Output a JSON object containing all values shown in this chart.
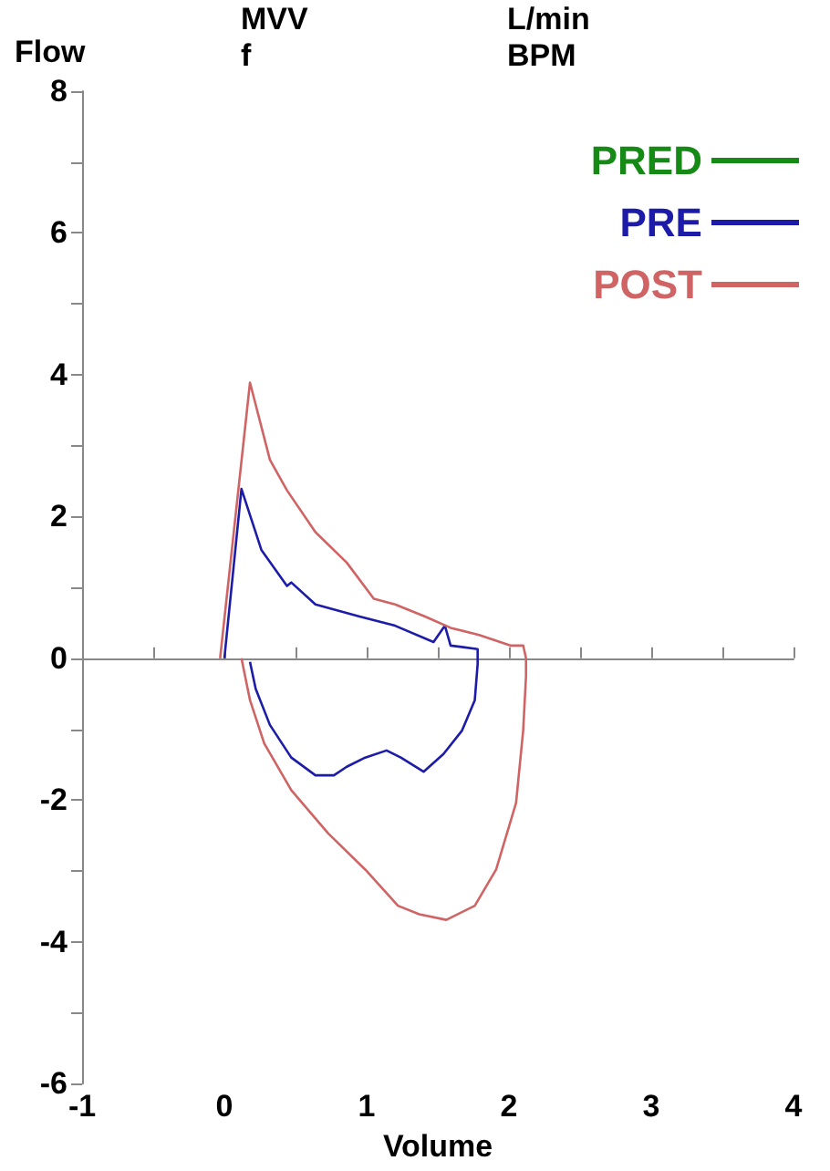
{
  "chart_data": {
    "type": "line",
    "xlabel": "Volume",
    "ylabel": "Flow",
    "annotations": [
      "MVV",
      "f",
      "L/min",
      "BPM"
    ],
    "xlim": [
      -1,
      4
    ],
    "xticks": [
      -1,
      {
        "value": -0.5,
        "label": null
      },
      0,
      {
        "value": 0.5,
        "label": null
      },
      1,
      {
        "value": 1.5,
        "label": null
      },
      2,
      {
        "value": 2.5,
        "label": null
      },
      3,
      {
        "value": 3.5,
        "label": null
      },
      4
    ],
    "ylim": [
      -6,
      8
    ],
    "yticks": [
      -6,
      {
        "value": -5,
        "label": null
      },
      -4,
      {
        "value": -3,
        "label": null
      },
      -2,
      {
        "value": -1,
        "label": null
      },
      0,
      {
        "value": 1,
        "label": null
      },
      2,
      {
        "value": 3,
        "label": null
      },
      4,
      {
        "value": 5,
        "label": null
      },
      6,
      {
        "value": 7,
        "label": null
      },
      8
    ],
    "legend": "top right",
    "marker": "none",
    "series": [
      {
        "name": "PRED",
        "color": "#158a15"
      },
      {
        "name": "PRE",
        "color": "#1c1ca8",
        "x": [
          0,
          0.12,
          0.26,
          0.44,
          0.47,
          0.64,
          0.95,
          1.2,
          1.47,
          1.55,
          1.59,
          1.78,
          1.78,
          1.76,
          1.67,
          1.54,
          1.4,
          1.24,
          1.14,
          0.99,
          0.86,
          0.77,
          0.64,
          0.47,
          0.32,
          0.22,
          0.18
        ],
        "values": [
          0,
          2.39,
          1.53,
          1.02,
          1.07,
          0.76,
          0.59,
          0.46,
          0.23,
          0.46,
          0.18,
          0.13,
          -0.08,
          -0.59,
          -1.02,
          -1.35,
          -1.6,
          -1.4,
          -1.3,
          -1.4,
          -1.53,
          -1.65,
          -1.65,
          -1.4,
          -0.94,
          -0.43,
          -0.05
        ]
      },
      {
        "name": "POST",
        "color": "#d06464",
        "x": [
          -0.03,
          0.18,
          0.32,
          0.44,
          0.64,
          0.86,
          1.05,
          1.2,
          1.41,
          1.59,
          1.79,
          2.01,
          2.1,
          2.12,
          2.12,
          2.1,
          2.05,
          1.91,
          1.76,
          1.56,
          1.37,
          1.22,
          0.99,
          0.73,
          0.47,
          0.28,
          0.18,
          0.12
        ],
        "values": [
          0,
          3.89,
          2.8,
          2.37,
          1.78,
          1.35,
          0.84,
          0.76,
          0.59,
          0.43,
          0.33,
          0.18,
          0.18,
          0,
          -0.25,
          -1.02,
          -2.04,
          -2.98,
          -3.49,
          -3.69,
          -3.61,
          -3.49,
          -2.98,
          -2.47,
          -1.86,
          -1.2,
          -0.59,
          0
        ]
      }
    ]
  }
}
